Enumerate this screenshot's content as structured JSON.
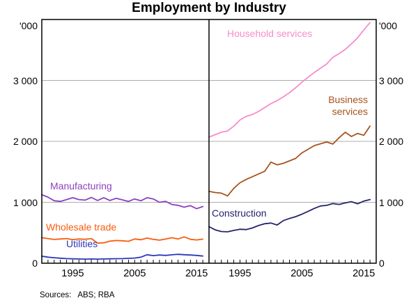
{
  "title": "Employment by Industry",
  "footer": {
    "sources": "Sources:   ABS; RBA"
  },
  "axis": {
    "unit_label": "'000",
    "ylim": [
      0,
      4000
    ],
    "grid_values": [
      1000,
      2000,
      3000
    ],
    "grid_color": "#ACACAC",
    "frame_color": "#000000",
    "yticks": [
      {
        "value": 4000,
        "label": "'000"
      },
      {
        "value": 3000,
        "label": "3 000"
      },
      {
        "value": 2000,
        "label": "2 000"
      },
      {
        "value": 1000,
        "label": "1 000"
      },
      {
        "value": 0,
        "label": "0"
      }
    ],
    "xtick_years": [
      1995,
      2005,
      2015
    ],
    "year_range": [
      1990,
      2017
    ],
    "tick_years_minor_step": 1
  },
  "chart_data": [
    {
      "type": "line",
      "panel": "left",
      "series": [
        {
          "name": "Manufacturing",
          "label": "Manufacturing",
          "color": "#8C3FC0",
          "points": [
            [
              1990,
              1125
            ],
            [
              1991,
              1085
            ],
            [
              1992,
              1025
            ],
            [
              1993,
              1015
            ],
            [
              1994,
              1045
            ],
            [
              1995,
              1075
            ],
            [
              1996,
              1045
            ],
            [
              1997,
              1035
            ],
            [
              1998,
              1080
            ],
            [
              1999,
              1030
            ],
            [
              2000,
              1075
            ],
            [
              2001,
              1030
            ],
            [
              2002,
              1065
            ],
            [
              2003,
              1040
            ],
            [
              2004,
              1015
            ],
            [
              2005,
              1055
            ],
            [
              2006,
              1025
            ],
            [
              2007,
              1075
            ],
            [
              2008,
              1055
            ],
            [
              2009,
              1000
            ],
            [
              2010,
              1015
            ],
            [
              2011,
              965
            ],
            [
              2012,
              950
            ],
            [
              2013,
              920
            ],
            [
              2014,
              945
            ],
            [
              2015,
              895
            ],
            [
              2016,
              930
            ]
          ]
        },
        {
          "name": "Wholesale trade",
          "label": "Wholesale trade",
          "color": "#F95B0D",
          "points": [
            [
              1990,
              420
            ],
            [
              1991,
              405
            ],
            [
              1992,
              390
            ],
            [
              1993,
              398
            ],
            [
              1994,
              405
            ],
            [
              1995,
              388
            ],
            [
              1996,
              398
            ],
            [
              1997,
              392
            ],
            [
              1998,
              405
            ],
            [
              1999,
              330
            ],
            [
              2000,
              335
            ],
            [
              2001,
              362
            ],
            [
              2002,
              372
            ],
            [
              2003,
              368
            ],
            [
              2004,
              360
            ],
            [
              2005,
              398
            ],
            [
              2006,
              385
            ],
            [
              2007,
              412
            ],
            [
              2008,
              392
            ],
            [
              2009,
              378
            ],
            [
              2010,
              398
            ],
            [
              2011,
              418
            ],
            [
              2012,
              398
            ],
            [
              2013,
              432
            ],
            [
              2014,
              392
            ],
            [
              2015,
              382
            ],
            [
              2016,
              395
            ]
          ]
        },
        {
          "name": "Utilities",
          "label": "Utilities",
          "color": "#2A37B8",
          "points": [
            [
              1990,
              115
            ],
            [
              1991,
              100
            ],
            [
              1992,
              90
            ],
            [
              1993,
              82
            ],
            [
              1994,
              76
            ],
            [
              1995,
              72
            ],
            [
              1996,
              70
            ],
            [
              1997,
              68
            ],
            [
              1998,
              70
            ],
            [
              1999,
              67
            ],
            [
              2000,
              70
            ],
            [
              2001,
              72
            ],
            [
              2002,
              74
            ],
            [
              2003,
              76
            ],
            [
              2004,
              80
            ],
            [
              2005,
              85
            ],
            [
              2006,
              100
            ],
            [
              2007,
              140
            ],
            [
              2008,
              125
            ],
            [
              2009,
              135
            ],
            [
              2010,
              128
            ],
            [
              2011,
              138
            ],
            [
              2012,
              146
            ],
            [
              2013,
              140
            ],
            [
              2014,
              135
            ],
            [
              2015,
              128
            ],
            [
              2016,
              118
            ]
          ]
        }
      ]
    },
    {
      "type": "line",
      "panel": "right",
      "series": [
        {
          "name": "Household services",
          "label": "Household services",
          "color": "#F88BCB",
          "points": [
            [
              1990,
              2070
            ],
            [
              1991,
              2110
            ],
            [
              1992,
              2150
            ],
            [
              1993,
              2170
            ],
            [
              1994,
              2250
            ],
            [
              1995,
              2350
            ],
            [
              1996,
              2410
            ],
            [
              1997,
              2440
            ],
            [
              1998,
              2490
            ],
            [
              1999,
              2555
            ],
            [
              2000,
              2620
            ],
            [
              2001,
              2670
            ],
            [
              2002,
              2730
            ],
            [
              2003,
              2800
            ],
            [
              2004,
              2880
            ],
            [
              2005,
              2970
            ],
            [
              2006,
              3050
            ],
            [
              2007,
              3130
            ],
            [
              2008,
              3200
            ],
            [
              2009,
              3270
            ],
            [
              2010,
              3380
            ],
            [
              2011,
              3440
            ],
            [
              2012,
              3510
            ],
            [
              2013,
              3600
            ],
            [
              2014,
              3700
            ],
            [
              2015,
              3830
            ],
            [
              2016,
              3950
            ]
          ]
        },
        {
          "name": "Business services",
          "label": "Business\nservices",
          "color": "#A5531D",
          "points": [
            [
              1990,
              1180
            ],
            [
              1991,
              1160
            ],
            [
              1992,
              1150
            ],
            [
              1993,
              1105
            ],
            [
              1994,
              1230
            ],
            [
              1995,
              1320
            ],
            [
              1996,
              1375
            ],
            [
              1997,
              1420
            ],
            [
              1998,
              1465
            ],
            [
              1999,
              1510
            ],
            [
              2000,
              1660
            ],
            [
              2001,
              1615
            ],
            [
              2002,
              1640
            ],
            [
              2003,
              1680
            ],
            [
              2004,
              1720
            ],
            [
              2005,
              1810
            ],
            [
              2006,
              1870
            ],
            [
              2007,
              1930
            ],
            [
              2008,
              1960
            ],
            [
              2009,
              1990
            ],
            [
              2010,
              1955
            ],
            [
              2011,
              2060
            ],
            [
              2012,
              2150
            ],
            [
              2013,
              2080
            ],
            [
              2014,
              2130
            ],
            [
              2015,
              2100
            ],
            [
              2016,
              2250
            ]
          ]
        },
        {
          "name": "Construction",
          "label": "Construction",
          "color": "#23236B",
          "points": [
            [
              1990,
              600
            ],
            [
              1991,
              548
            ],
            [
              1992,
              520
            ],
            [
              1993,
              515
            ],
            [
              1994,
              538
            ],
            [
              1995,
              558
            ],
            [
              1996,
              552
            ],
            [
              1997,
              578
            ],
            [
              1998,
              618
            ],
            [
              1999,
              648
            ],
            [
              2000,
              660
            ],
            [
              2001,
              628
            ],
            [
              2002,
              700
            ],
            [
              2003,
              735
            ],
            [
              2004,
              765
            ],
            [
              2005,
              805
            ],
            [
              2006,
              850
            ],
            [
              2007,
              900
            ],
            [
              2008,
              940
            ],
            [
              2009,
              950
            ],
            [
              2010,
              980
            ],
            [
              2011,
              965
            ],
            [
              2012,
              990
            ],
            [
              2013,
              1010
            ],
            [
              2014,
              975
            ],
            [
              2015,
              1020
            ],
            [
              2016,
              1045
            ]
          ]
        }
      ]
    }
  ]
}
